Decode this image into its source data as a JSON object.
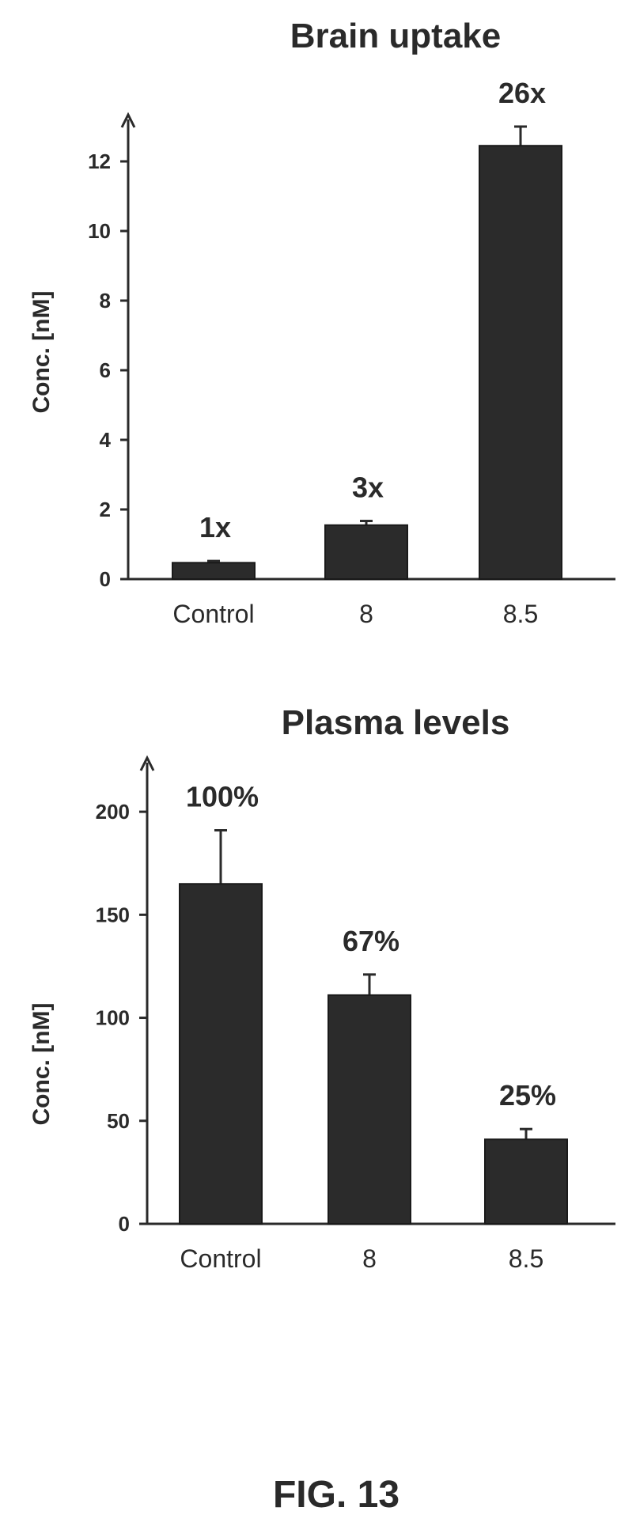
{
  "caption": "FIG. 13",
  "colors": {
    "bar": "#2b2b2b",
    "axis": "#2a2a2a",
    "text": "#2a2a2a"
  },
  "chart_data": [
    {
      "type": "bar",
      "title": "Brain uptake",
      "xlabel": "",
      "ylabel": "Conc. [nM]",
      "categories": [
        "Control",
        "8",
        "8.5"
      ],
      "values": [
        0.47,
        1.55,
        12.45
      ],
      "errors": [
        0.05,
        0.12,
        0.55
      ],
      "data_labels": [
        "1x",
        "3x",
        "26x"
      ],
      "ylim": [
        0,
        13
      ],
      "yticks": [
        0,
        2,
        4,
        6,
        8,
        10,
        12
      ],
      "grid": false,
      "legend": "none"
    },
    {
      "type": "bar",
      "title": "Plasma levels",
      "xlabel": "",
      "ylabel": "Conc. [nM]",
      "categories": [
        "Control",
        "8",
        "8.5"
      ],
      "values": [
        165,
        111,
        41
      ],
      "errors": [
        26,
        10,
        5
      ],
      "data_labels": [
        "100%",
        "67%",
        "25%"
      ],
      "ylim": [
        0,
        220
      ],
      "yticks": [
        0,
        50,
        100,
        150,
        200
      ],
      "grid": false,
      "legend": "none"
    }
  ]
}
